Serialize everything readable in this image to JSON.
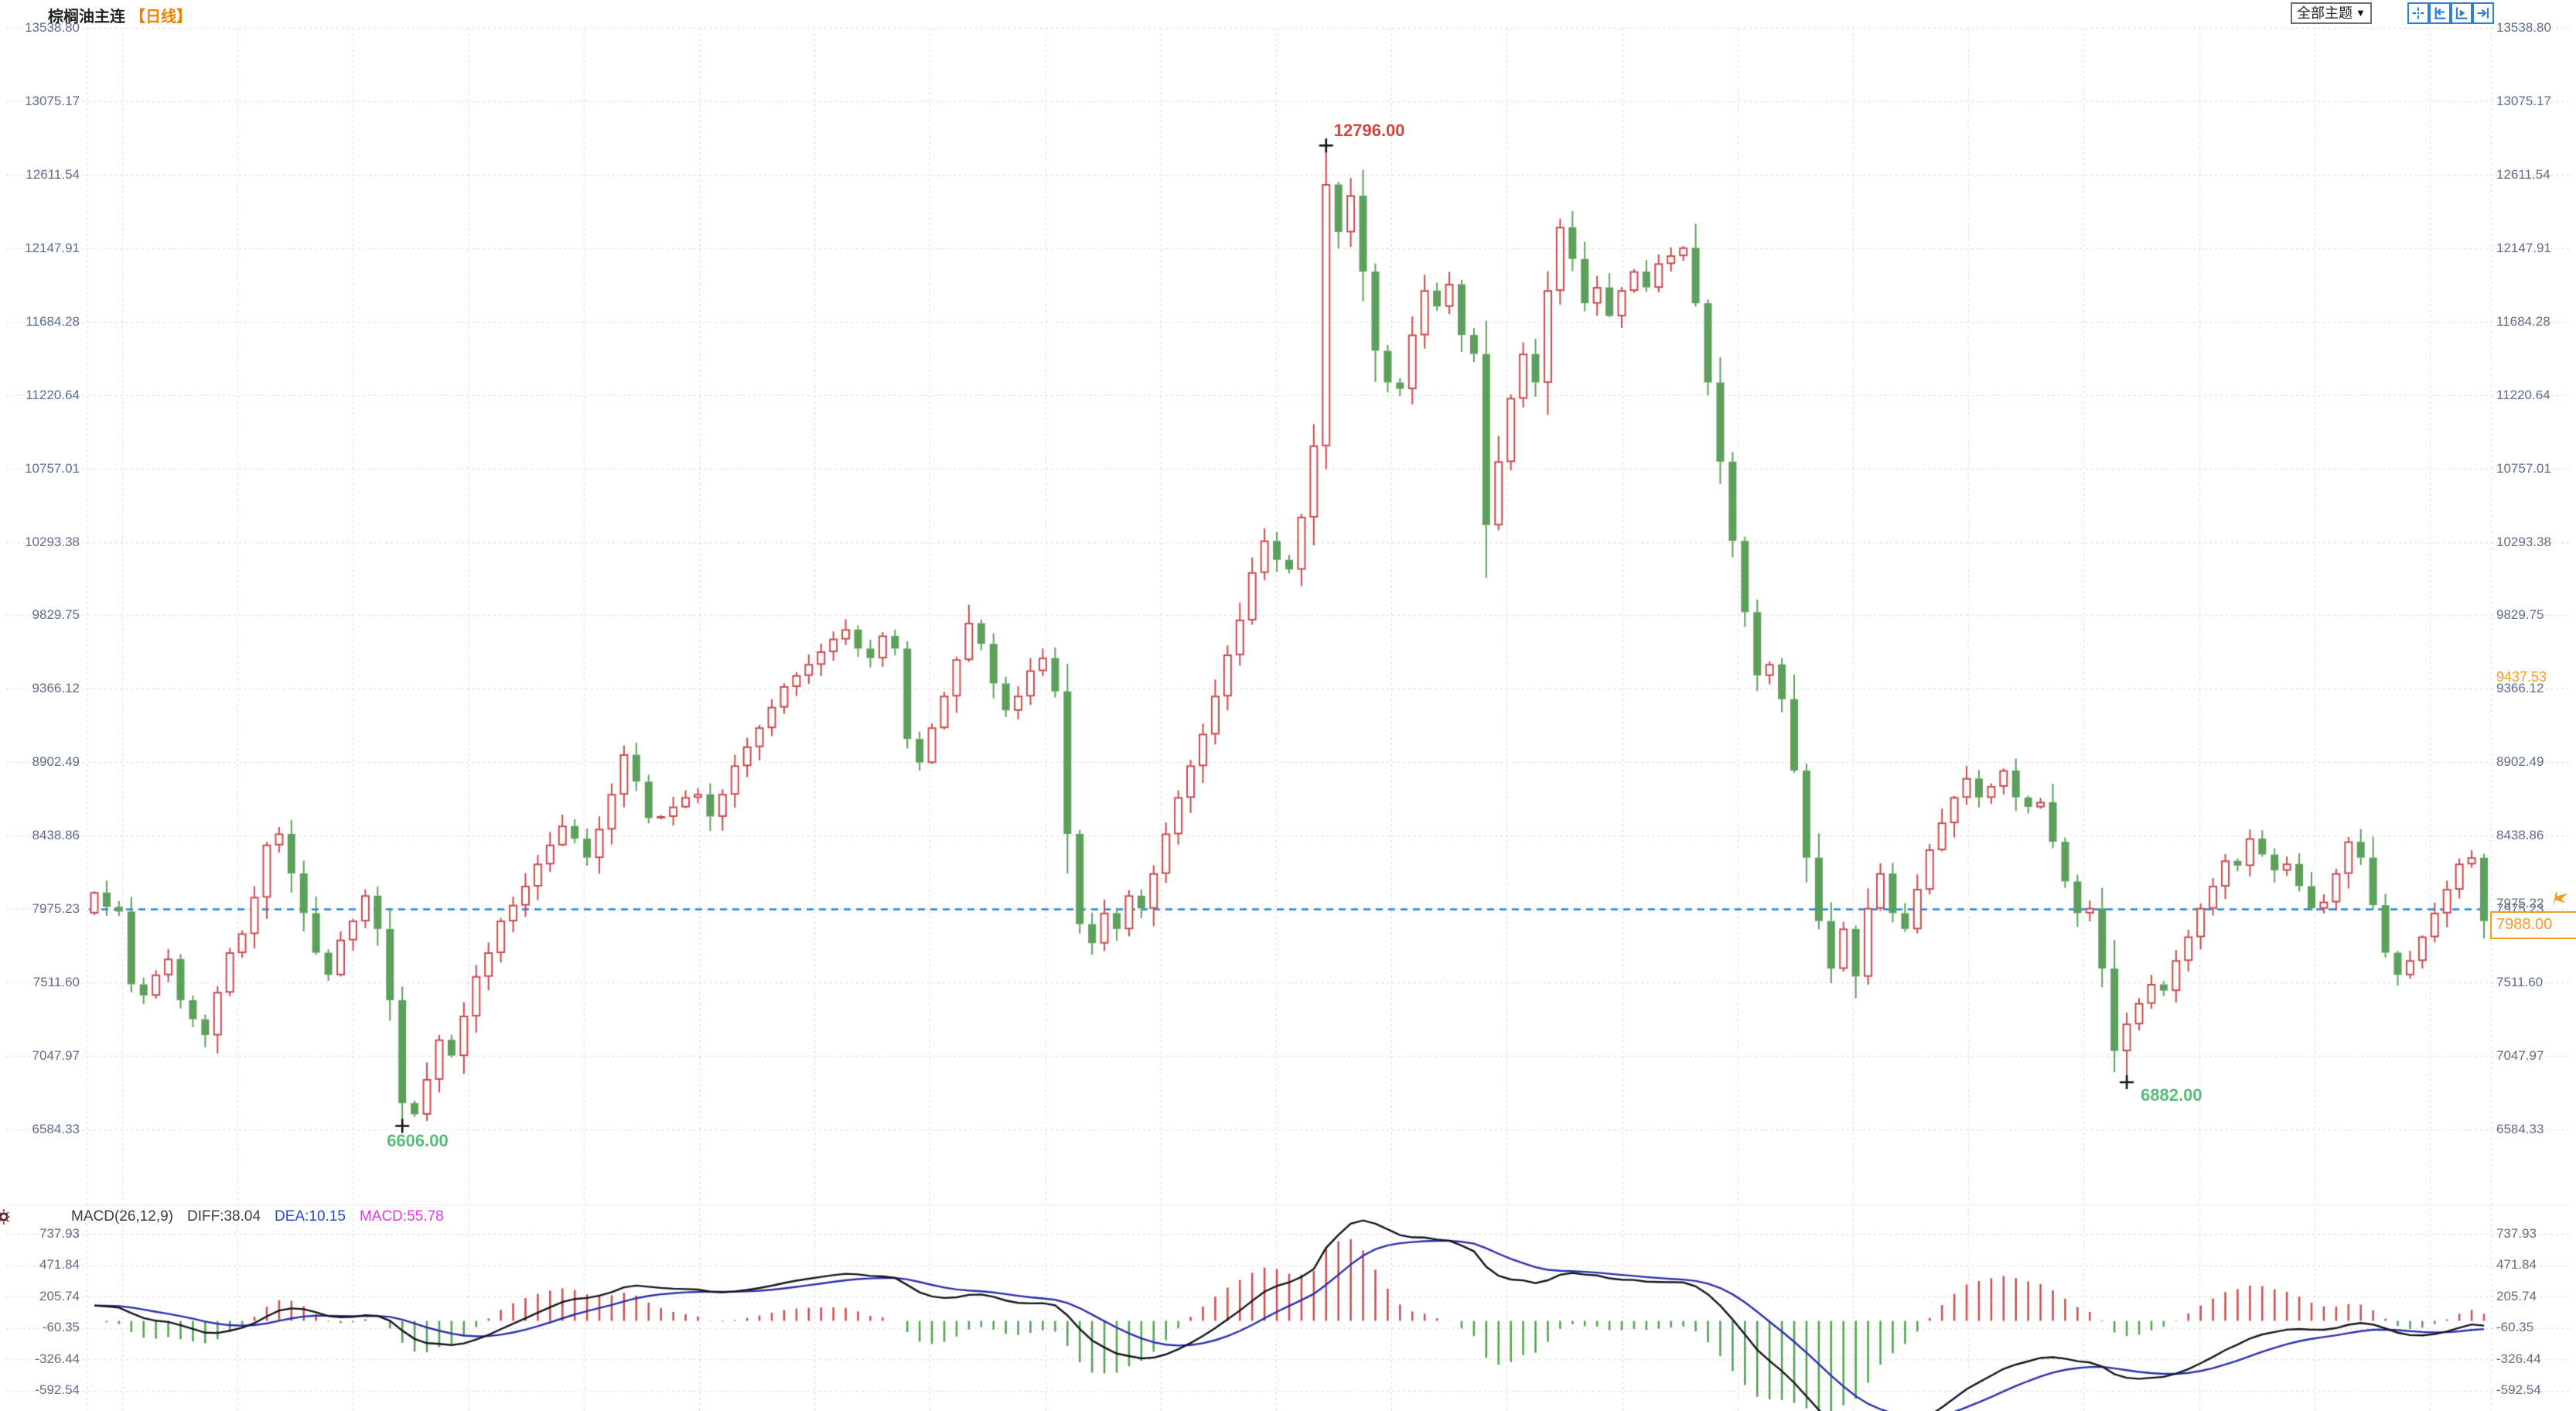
{
  "header": {
    "title": "棕榈油主连",
    "interval_tag": "【日线】",
    "theme_button": "全部主题",
    "theme_arrow": "▼",
    "toolbar_icon_names": [
      "crosshair-fit-icon",
      "compress-left-icon",
      "play-axis-icon",
      "jump-end-icon"
    ]
  },
  "price_axis": {
    "ticks": [
      "13538.80",
      "13075.17",
      "12611.54",
      "12147.91",
      "11684.28",
      "11220.64",
      "10757.01",
      "10293.38",
      "9829.75",
      "9366.12",
      "8902.49",
      "8438.86",
      "7975.23",
      "7511.60",
      "7047.97",
      "6584.33"
    ]
  },
  "macd_axis": {
    "ticks": [
      "737.93",
      "471.84",
      "205.74",
      "-60.35",
      "-326.44",
      "-592.54"
    ]
  },
  "annotations": {
    "high_label": "12796.00",
    "low_label_1": "6606.00",
    "low_label_2": "6882.00"
  },
  "reference_line": {
    "right_label": "7975.22"
  },
  "price_box": {
    "value": "7988.00"
  },
  "avg_price_label": "9437.53",
  "macd_panel": {
    "title": "MACD(26,12,9)",
    "diff_label": "DIFF:38.04",
    "dea_label": "DEA:10.15",
    "macd_label": "MACD:55.78"
  },
  "colors": {
    "up": "#cd4a4c",
    "down": "#5da05c",
    "ref_line": "#1f86e0",
    "accent_orange": "#f59a23",
    "annotation_red": "#d0483f",
    "annotation_green": "#56be7b",
    "diff_line": "#14141c",
    "dea_line": "#2a2fae",
    "axis_text": "#5f6e86",
    "icon_blue": "#2e7fd6",
    "grid": "#e7d4d4",
    "cross_mark": "#111111"
  },
  "chart_data": {
    "type": "candlestick",
    "symbol": "棕榈油主连",
    "interval": "日线",
    "y_ticks": [
      13538.8,
      13075.17,
      12611.54,
      12147.91,
      11684.28,
      11220.64,
      10757.01,
      10293.38,
      9829.75,
      9366.12,
      8902.49,
      8438.86,
      7975.23,
      7511.6,
      7047.97,
      6584.33
    ],
    "reference_price": 7975.23,
    "last_price": 7988.0,
    "avg_price": 9437.53,
    "seed": 7,
    "candles_approx_closes": [
      8080,
      7990,
      7960,
      7500,
      7430,
      7560,
      7660,
      7400,
      7280,
      7180,
      7450,
      7700,
      7820,
      8050,
      8380,
      8450,
      8200,
      7950,
      7700,
      7560,
      7780,
      7900,
      8060,
      7850,
      7400,
      6750,
      6680,
      6900,
      7150,
      7050,
      7300,
      7550,
      7700,
      7900,
      8000,
      8120,
      8260,
      8380,
      8500,
      8420,
      8300,
      8480,
      8700,
      8950,
      8780,
      8550,
      8560,
      8620,
      8680,
      8700,
      8560,
      8700,
      8880,
      9000,
      9120,
      9250,
      9380,
      9450,
      9520,
      9600,
      9680,
      9740,
      9620,
      9560,
      9700,
      9620,
      9050,
      8900,
      9120,
      9320,
      9550,
      9780,
      9650,
      9400,
      9230,
      9320,
      9480,
      9560,
      9350,
      8450,
      7880,
      7760,
      7950,
      7850,
      8060,
      7980,
      8200,
      8450,
      8680,
      8880,
      9080,
      9320,
      9580,
      9800,
      10100,
      10300,
      10180,
      10120,
      10450,
      10900,
      12550,
      12250,
      12480,
      12000,
      11500,
      11300,
      11260,
      11600,
      11880,
      11780,
      11920,
      11600,
      11480,
      10400,
      10800,
      11200,
      11480,
      11300,
      11880,
      12280,
      12080,
      11800,
      11900,
      11720,
      11880,
      12000,
      11900,
      12050,
      12100,
      12150,
      11800,
      11300,
      10800,
      10300,
      9850,
      9450,
      9520,
      9300,
      8850,
      8300,
      7900,
      7600,
      7850,
      7550,
      7980,
      8200,
      7950,
      7850,
      8100,
      8350,
      8520,
      8680,
      8800,
      8680,
      8750,
      8850,
      8680,
      8620,
      8650,
      8400,
      8150,
      7950,
      7980,
      7600,
      7080,
      7250,
      7380,
      7500,
      7460,
      7650,
      7800,
      7980,
      8120,
      8280,
      8250,
      8420,
      8320,
      8220,
      8260,
      8120,
      7980,
      8020,
      8200,
      8400,
      8300,
      8000,
      7700,
      7560,
      7650,
      7800,
      7950,
      8100,
      8260,
      8300,
      7900
    ],
    "special_points": {
      "high": {
        "index": 100,
        "price": 12796.0
      },
      "low1": {
        "index": 25,
        "price": 6606.0
      },
      "low2": {
        "index": 165,
        "price": 6882.0
      }
    },
    "macd": {
      "params": [
        26,
        12,
        9
      ],
      "diff": 38.04,
      "dea": 10.15,
      "macd": 55.78,
      "y_ticks": [
        737.93,
        471.84,
        205.74,
        -60.35,
        -326.44,
        -592.54
      ]
    }
  }
}
